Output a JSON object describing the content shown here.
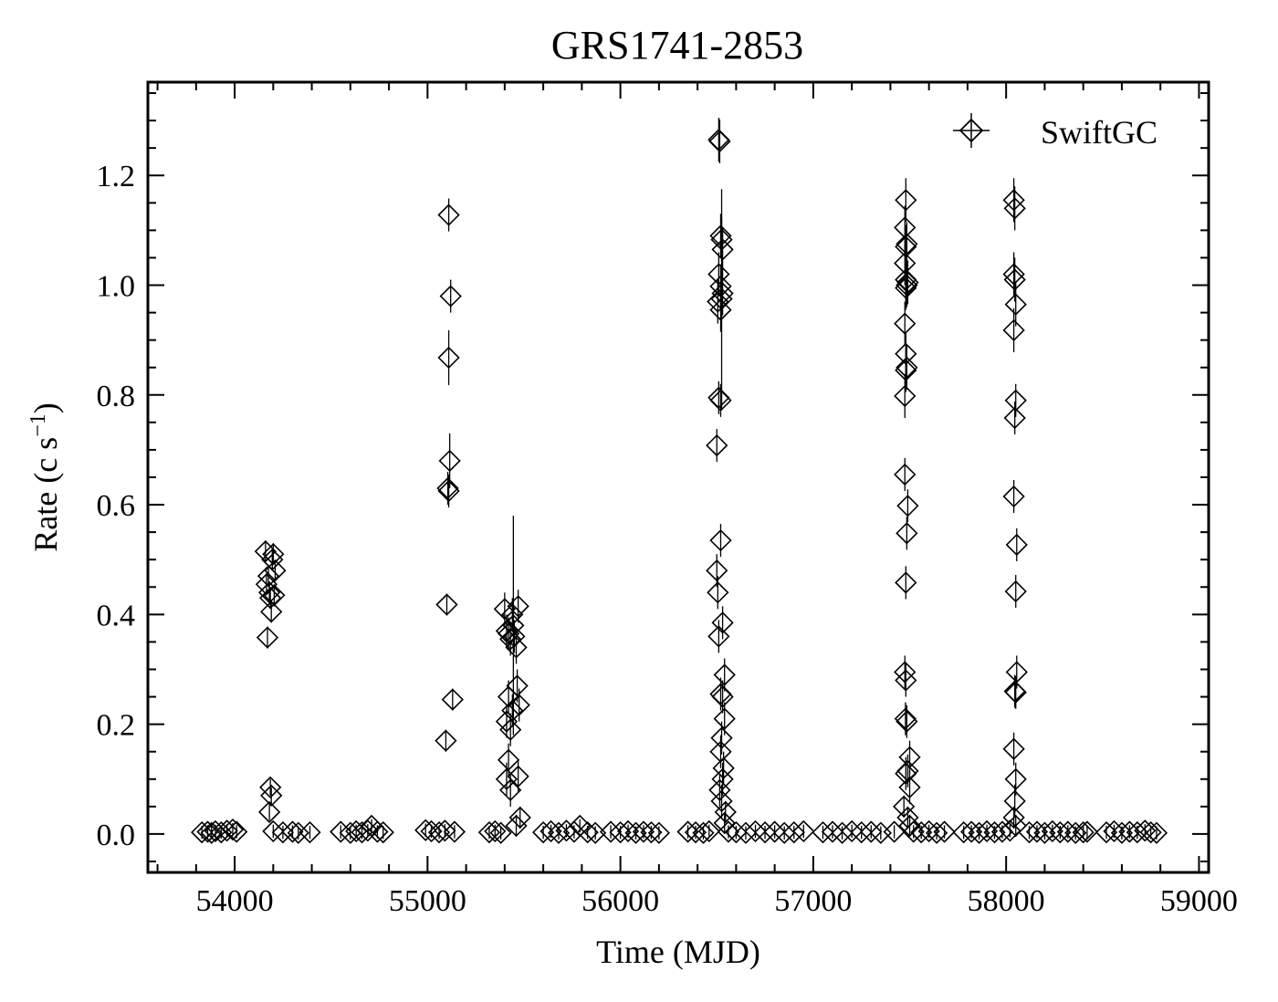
{
  "chart_data": {
    "type": "scatter",
    "title": "GRS1741-2853",
    "xlabel": "Time (MJD)",
    "ylabel": {
      "main": "Rate (c s",
      "sup": "−1",
      "close": ")"
    },
    "xlim": [
      53550,
      59050
    ],
    "ylim": [
      -0.07,
      1.37
    ],
    "xticks": [
      54000,
      55000,
      56000,
      57000,
      58000,
      59000
    ],
    "yticks": [
      0.0,
      0.2,
      0.4,
      0.6,
      0.8,
      1.0,
      1.2
    ],
    "ytick_labels": [
      "0.0",
      "0.2",
      "0.4",
      "0.6",
      "0.8",
      "1.0",
      "1.2"
    ],
    "xminor_step": 200,
    "yminor_step": 0.05,
    "grid": false,
    "legend": {
      "position": "top-right"
    },
    "marker": "open-diamond",
    "color": "#000000",
    "series": [
      {
        "name": "SwiftGC",
        "points": [
          [
            53830,
            0.003,
            0.012
          ],
          [
            53860,
            0.004,
            0.012
          ],
          [
            53880,
            0.002,
            0.012
          ],
          [
            53900,
            0.005,
            0.012
          ],
          [
            53930,
            0.003,
            0.012
          ],
          [
            53960,
            0.006,
            0.012
          ],
          [
            53990,
            0.008,
            0.012
          ],
          [
            54010,
            0.004,
            0.012
          ],
          [
            54160,
            0.515,
            0.02
          ],
          [
            54165,
            0.455,
            0.02
          ],
          [
            54170,
            0.358,
            0.02
          ],
          [
            54175,
            0.47,
            0.02
          ],
          [
            54180,
            0.44,
            0.02
          ],
          [
            54185,
            0.43,
            0.02
          ],
          [
            54190,
            0.405,
            0.02
          ],
          [
            54195,
            0.5,
            0.02
          ],
          [
            54200,
            0.51,
            0.02
          ],
          [
            54205,
            0.435,
            0.02
          ],
          [
            54210,
            0.48,
            0.02
          ],
          [
            54185,
            0.085,
            0.015
          ],
          [
            54190,
            0.07,
            0.015
          ],
          [
            54180,
            0.04,
            0.015
          ],
          [
            54200,
            0.005,
            0.012
          ],
          [
            54250,
            0.003,
            0.012
          ],
          [
            54300,
            0.004,
            0.012
          ],
          [
            54330,
            0.002,
            0.012
          ],
          [
            54390,
            0.003,
            0.012
          ],
          [
            54550,
            0.004,
            0.012
          ],
          [
            54600,
            0.002,
            0.012
          ],
          [
            54630,
            0.005,
            0.012
          ],
          [
            54660,
            0.003,
            0.012
          ],
          [
            54690,
            0.006,
            0.012
          ],
          [
            54710,
            0.015,
            0.012
          ],
          [
            54740,
            0.004,
            0.012
          ],
          [
            54770,
            0.003,
            0.012
          ],
          [
            54990,
            0.007,
            0.012
          ],
          [
            55020,
            0.005,
            0.012
          ],
          [
            55060,
            0.003,
            0.012
          ],
          [
            55090,
            0.006,
            0.012
          ],
          [
            55140,
            0.004,
            0.012
          ],
          [
            55110,
            1.128,
            0.03
          ],
          [
            55120,
            0.98,
            0.03
          ],
          [
            55110,
            0.868,
            0.05
          ],
          [
            55115,
            0.68,
            0.05
          ],
          [
            55105,
            0.63,
            0.03
          ],
          [
            55110,
            0.625,
            0.03
          ],
          [
            55100,
            0.418,
            0.02
          ],
          [
            55130,
            0.245,
            0.02
          ],
          [
            55095,
            0.17,
            0.02
          ],
          [
            55320,
            0.003,
            0.012
          ],
          [
            55350,
            0.005,
            0.012
          ],
          [
            55380,
            0.002,
            0.012
          ],
          [
            55400,
            0.41,
            0.03
          ],
          [
            55410,
            0.37,
            0.03
          ],
          [
            55420,
            0.365,
            0.03
          ],
          [
            55430,
            0.355,
            0.03
          ],
          [
            55440,
            0.4,
            0.03
          ],
          [
            55450,
            0.36,
            0.03
          ],
          [
            55460,
            0.34,
            0.03
          ],
          [
            55470,
            0.415,
            0.03
          ],
          [
            55445,
            0.38,
            0.2
          ],
          [
            55420,
            0.25,
            0.03
          ],
          [
            55440,
            0.225,
            0.03
          ],
          [
            55410,
            0.205,
            0.03
          ],
          [
            55430,
            0.19,
            0.03
          ],
          [
            55465,
            0.27,
            0.03
          ],
          [
            55475,
            0.235,
            0.03
          ],
          [
            55420,
            0.135,
            0.03
          ],
          [
            55410,
            0.1,
            0.03
          ],
          [
            55430,
            0.08,
            0.03
          ],
          [
            55470,
            0.105,
            0.03
          ],
          [
            55480,
            0.03,
            0.02
          ],
          [
            55460,
            0.015,
            0.02
          ],
          [
            55600,
            0.003,
            0.012
          ],
          [
            55640,
            0.005,
            0.012
          ],
          [
            55680,
            0.002,
            0.012
          ],
          [
            55720,
            0.006,
            0.012
          ],
          [
            55760,
            0.004,
            0.012
          ],
          [
            55790,
            0.015,
            0.012
          ],
          [
            55830,
            0.003,
            0.012
          ],
          [
            55870,
            0.002,
            0.012
          ],
          [
            55950,
            0.004,
            0.012
          ],
          [
            56000,
            0.003,
            0.012
          ],
          [
            56040,
            0.005,
            0.012
          ],
          [
            56080,
            0.002,
            0.012
          ],
          [
            56120,
            0.004,
            0.012
          ],
          [
            56160,
            0.003,
            0.012
          ],
          [
            56200,
            0.002,
            0.012
          ],
          [
            56350,
            0.004,
            0.012
          ],
          [
            56390,
            0.003,
            0.012
          ],
          [
            56430,
            0.002,
            0.012
          ],
          [
            56460,
            0.005,
            0.012
          ],
          [
            56510,
            1.265,
            0.04
          ],
          [
            56515,
            1.262,
            0.04
          ],
          [
            56520,
            1.09,
            0.04
          ],
          [
            56525,
            1.083,
            0.04
          ],
          [
            56530,
            1.065,
            0.04
          ],
          [
            56510,
            1.02,
            0.04
          ],
          [
            56520,
            0.998,
            0.04
          ],
          [
            56530,
            0.985,
            0.04
          ],
          [
            56505,
            0.97,
            0.04
          ],
          [
            56520,
            0.955,
            0.04
          ],
          [
            56525,
            0.975,
            0.2
          ],
          [
            56510,
            0.795,
            0.03
          ],
          [
            56520,
            0.79,
            0.03
          ],
          [
            56500,
            0.708,
            0.03
          ],
          [
            56520,
            0.535,
            0.03
          ],
          [
            56500,
            0.48,
            0.03
          ],
          [
            56505,
            0.44,
            0.03
          ],
          [
            56510,
            0.36,
            0.03
          ],
          [
            56530,
            0.385,
            0.03
          ],
          [
            56540,
            0.29,
            0.03
          ],
          [
            56520,
            0.255,
            0.03
          ],
          [
            56530,
            0.25,
            0.03
          ],
          [
            56540,
            0.21,
            0.03
          ],
          [
            56525,
            0.175,
            0.03
          ],
          [
            56520,
            0.15,
            0.03
          ],
          [
            56535,
            0.12,
            0.03
          ],
          [
            56530,
            0.1,
            0.03
          ],
          [
            56515,
            0.08,
            0.03
          ],
          [
            56525,
            0.06,
            0.03
          ],
          [
            56545,
            0.04,
            0.02
          ],
          [
            56540,
            0.02,
            0.02
          ],
          [
            56560,
            0.004,
            0.012
          ],
          [
            56600,
            0.003,
            0.012
          ],
          [
            56650,
            0.002,
            0.012
          ],
          [
            56700,
            0.005,
            0.012
          ],
          [
            56750,
            0.003,
            0.012
          ],
          [
            56800,
            0.004,
            0.012
          ],
          [
            56850,
            0.002,
            0.012
          ],
          [
            56900,
            0.003,
            0.012
          ],
          [
            56950,
            0.005,
            0.012
          ],
          [
            57050,
            0.003,
            0.012
          ],
          [
            57100,
            0.004,
            0.012
          ],
          [
            57150,
            0.002,
            0.012
          ],
          [
            57200,
            0.005,
            0.012
          ],
          [
            57250,
            0.003,
            0.012
          ],
          [
            57300,
            0.004,
            0.012
          ],
          [
            57350,
            0.002,
            0.012
          ],
          [
            57420,
            0.004,
            0.012
          ],
          [
            57480,
            1.155,
            0.04
          ],
          [
            57475,
            1.105,
            0.04
          ],
          [
            57485,
            1.075,
            0.04
          ],
          [
            57480,
            1.07,
            0.04
          ],
          [
            57475,
            1.04,
            0.04
          ],
          [
            57480,
            1.01,
            0.04
          ],
          [
            57485,
            1.0,
            0.04
          ],
          [
            57480,
            0.995,
            0.04
          ],
          [
            57490,
            1.005,
            0.04
          ],
          [
            57475,
            0.93,
            0.04
          ],
          [
            57480,
            0.875,
            0.04
          ],
          [
            57485,
            0.85,
            0.04
          ],
          [
            57480,
            0.845,
            0.04
          ],
          [
            57475,
            0.798,
            0.04
          ],
          [
            57475,
            0.655,
            0.03
          ],
          [
            57490,
            0.598,
            0.03
          ],
          [
            57485,
            0.548,
            0.03
          ],
          [
            57480,
            0.458,
            0.03
          ],
          [
            57475,
            0.295,
            0.03
          ],
          [
            57480,
            0.28,
            0.03
          ],
          [
            57478,
            0.21,
            0.03
          ],
          [
            57485,
            0.205,
            0.03
          ],
          [
            57500,
            0.14,
            0.03
          ],
          [
            57490,
            0.115,
            0.03
          ],
          [
            57480,
            0.11,
            0.03
          ],
          [
            57500,
            0.085,
            0.03
          ],
          [
            57470,
            0.05,
            0.02
          ],
          [
            57490,
            0.03,
            0.02
          ],
          [
            57500,
            0.015,
            0.02
          ],
          [
            57520,
            0.004,
            0.012
          ],
          [
            57560,
            0.003,
            0.012
          ],
          [
            57600,
            0.005,
            0.012
          ],
          [
            57640,
            0.002,
            0.012
          ],
          [
            57680,
            0.004,
            0.012
          ],
          [
            57780,
            0.003,
            0.012
          ],
          [
            57820,
            0.004,
            0.012
          ],
          [
            57860,
            0.002,
            0.012
          ],
          [
            57900,
            0.005,
            0.012
          ],
          [
            57940,
            0.003,
            0.012
          ],
          [
            57980,
            0.004,
            0.012
          ],
          [
            58020,
            0.006,
            0.012
          ],
          [
            58040,
            1.155,
            0.04
          ],
          [
            58045,
            1.14,
            0.04
          ],
          [
            58040,
            1.02,
            0.04
          ],
          [
            58045,
            1.01,
            0.04
          ],
          [
            58050,
            0.965,
            0.04
          ],
          [
            58040,
            0.918,
            0.04
          ],
          [
            58050,
            0.79,
            0.03
          ],
          [
            58045,
            0.758,
            0.03
          ],
          [
            58040,
            0.615,
            0.03
          ],
          [
            58055,
            0.527,
            0.03
          ],
          [
            58050,
            0.442,
            0.03
          ],
          [
            58055,
            0.295,
            0.03
          ],
          [
            58045,
            0.26,
            0.03
          ],
          [
            58050,
            0.258,
            0.03
          ],
          [
            58040,
            0.155,
            0.03
          ],
          [
            58050,
            0.1,
            0.03
          ],
          [
            58045,
            0.06,
            0.03
          ],
          [
            58040,
            0.03,
            0.02
          ],
          [
            58050,
            0.015,
            0.02
          ],
          [
            58120,
            0.003,
            0.012
          ],
          [
            58160,
            0.004,
            0.012
          ],
          [
            58200,
            0.002,
            0.012
          ],
          [
            58240,
            0.005,
            0.012
          ],
          [
            58280,
            0.003,
            0.012
          ],
          [
            58320,
            0.004,
            0.012
          ],
          [
            58360,
            0.002,
            0.012
          ],
          [
            58400,
            0.003,
            0.012
          ],
          [
            58420,
            0.004,
            0.012
          ],
          [
            58520,
            0.003,
            0.012
          ],
          [
            58560,
            0.005,
            0.012
          ],
          [
            58600,
            0.002,
            0.012
          ],
          [
            58640,
            0.004,
            0.012
          ],
          [
            58680,
            0.003,
            0.012
          ],
          [
            58720,
            0.006,
            0.012
          ],
          [
            58750,
            0.003,
            0.012
          ],
          [
            58780,
            0.002,
            0.012
          ]
        ]
      }
    ]
  }
}
